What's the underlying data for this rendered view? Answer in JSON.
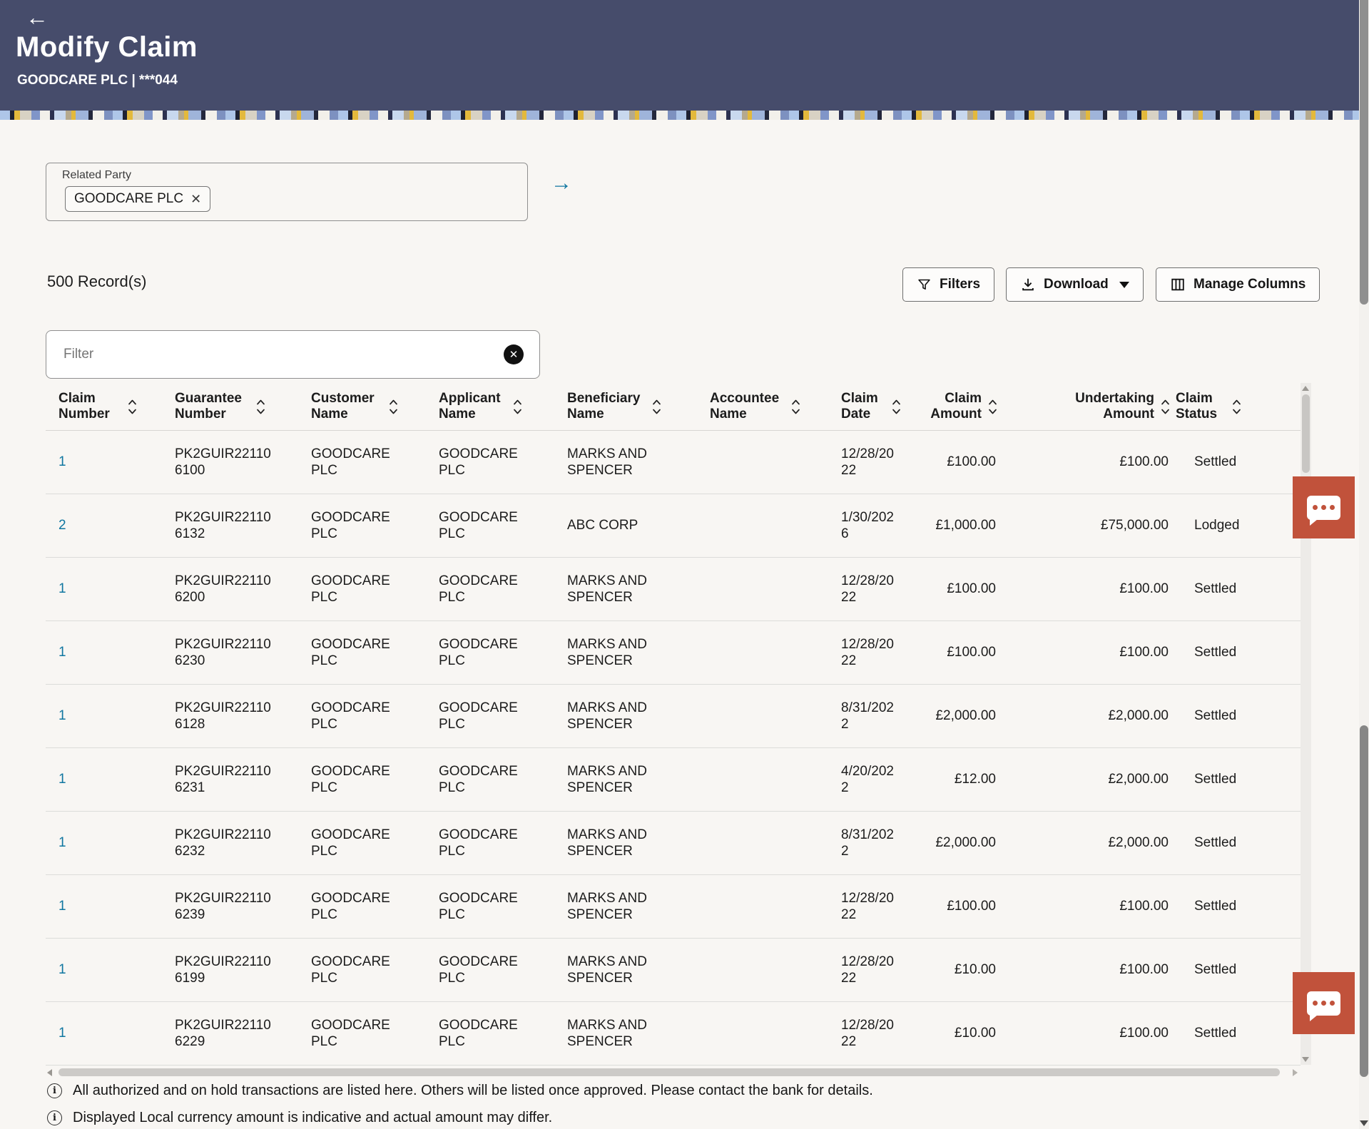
{
  "header": {
    "title": "Modify Claim",
    "subtitle": "GOODCARE PLC | ***044"
  },
  "related_party": {
    "label": "Related Party",
    "chip": "GOODCARE PLC"
  },
  "toolbar": {
    "records": "500 Record(s)",
    "filters": "Filters",
    "download": "Download",
    "manage_columns": "Manage Columns"
  },
  "filter": {
    "placeholder": "Filter"
  },
  "table": {
    "columns": [
      {
        "key": "claim_number",
        "label": "Claim Number",
        "align": "left"
      },
      {
        "key": "guarantee_number",
        "label": "Guarantee Number",
        "align": "left"
      },
      {
        "key": "customer_name",
        "label": "Customer Name",
        "align": "left"
      },
      {
        "key": "applicant_name",
        "label": "Applicant Name",
        "align": "left"
      },
      {
        "key": "beneficiary_name",
        "label": "Beneficiary Name",
        "align": "left"
      },
      {
        "key": "accountee_name",
        "label": "Accountee Name",
        "align": "left"
      },
      {
        "key": "claim_date",
        "label": "Claim Date",
        "align": "left"
      },
      {
        "key": "claim_amount",
        "label": "Claim Amount",
        "align": "right"
      },
      {
        "key": "undertaking_amount",
        "label": "Undertaking Amount",
        "align": "right"
      },
      {
        "key": "claim_status",
        "label": "Claim Status",
        "align": "left"
      }
    ],
    "rows": [
      {
        "claim_number": "1",
        "guarantee_number": "PK2GUIR221106100",
        "customer_name": "GOODCARE PLC",
        "applicant_name": "GOODCARE PLC",
        "beneficiary_name": "MARKS AND SPENCER",
        "accountee_name": "",
        "claim_date": "12/28/2022",
        "claim_amount": "£100.00",
        "undertaking_amount": "£100.00",
        "claim_status": "Settled"
      },
      {
        "claim_number": "2",
        "guarantee_number": "PK2GUIR221106132",
        "customer_name": "GOODCARE PLC",
        "applicant_name": "GOODCARE PLC",
        "beneficiary_name": "ABC CORP",
        "accountee_name": "",
        "claim_date": "1/30/2026",
        "claim_amount": "£1,000.00",
        "undertaking_amount": "£75,000.00",
        "claim_status": "Lodged"
      },
      {
        "claim_number": "1",
        "guarantee_number": "PK2GUIR221106200",
        "customer_name": "GOODCARE PLC",
        "applicant_name": "GOODCARE PLC",
        "beneficiary_name": "MARKS AND SPENCER",
        "accountee_name": "",
        "claim_date": "12/28/2022",
        "claim_amount": "£100.00",
        "undertaking_amount": "£100.00",
        "claim_status": "Settled"
      },
      {
        "claim_number": "1",
        "guarantee_number": "PK2GUIR221106230",
        "customer_name": "GOODCARE PLC",
        "applicant_name": "GOODCARE PLC",
        "beneficiary_name": "MARKS AND SPENCER",
        "accountee_name": "",
        "claim_date": "12/28/2022",
        "claim_amount": "£100.00",
        "undertaking_amount": "£100.00",
        "claim_status": "Settled"
      },
      {
        "claim_number": "1",
        "guarantee_number": "PK2GUIR221106128",
        "customer_name": "GOODCARE PLC",
        "applicant_name": "GOODCARE PLC",
        "beneficiary_name": "MARKS AND SPENCER",
        "accountee_name": "",
        "claim_date": "8/31/2022",
        "claim_amount": "£2,000.00",
        "undertaking_amount": "£2,000.00",
        "claim_status": "Settled"
      },
      {
        "claim_number": "1",
        "guarantee_number": "PK2GUIR221106231",
        "customer_name": "GOODCARE PLC",
        "applicant_name": "GOODCARE PLC",
        "beneficiary_name": "MARKS AND SPENCER",
        "accountee_name": "",
        "claim_date": "4/20/2022",
        "claim_amount": "£12.00",
        "undertaking_amount": "£2,000.00",
        "claim_status": "Settled"
      },
      {
        "claim_number": "1",
        "guarantee_number": "PK2GUIR221106232",
        "customer_name": "GOODCARE PLC",
        "applicant_name": "GOODCARE PLC",
        "beneficiary_name": "MARKS AND SPENCER",
        "accountee_name": "",
        "claim_date": "8/31/2022",
        "claim_amount": "£2,000.00",
        "undertaking_amount": "£2,000.00",
        "claim_status": "Settled"
      },
      {
        "claim_number": "1",
        "guarantee_number": "PK2GUIR221106239",
        "customer_name": "GOODCARE PLC",
        "applicant_name": "GOODCARE PLC",
        "beneficiary_name": "MARKS AND SPENCER",
        "accountee_name": "",
        "claim_date": "12/28/2022",
        "claim_amount": "£100.00",
        "undertaking_amount": "£100.00",
        "claim_status": "Settled"
      },
      {
        "claim_number": "1",
        "guarantee_number": "PK2GUIR221106199",
        "customer_name": "GOODCARE PLC",
        "applicant_name": "GOODCARE PLC",
        "beneficiary_name": "MARKS AND SPENCER",
        "accountee_name": "",
        "claim_date": "12/28/2022",
        "claim_amount": "£10.00",
        "undertaking_amount": "£100.00",
        "claim_status": "Settled"
      },
      {
        "claim_number": "1",
        "guarantee_number": "PK2GUIR221106229",
        "customer_name": "GOODCARE PLC",
        "applicant_name": "GOODCARE PLC",
        "beneficiary_name": "MARKS AND SPENCER",
        "accountee_name": "",
        "claim_date": "12/28/2022",
        "claim_amount": "£10.00",
        "undertaking_amount": "£100.00",
        "claim_status": "Settled"
      }
    ]
  },
  "notes": [
    "All authorized and on hold transactions are listed here. Others will be listed once approved. Please contact the bank for details.",
    "Displayed Local currency amount is indicative and actual amount may differ."
  ],
  "icons": {
    "back": "arrow-left",
    "submit": "arrow-right",
    "chip_remove": "x",
    "filters": "funnel",
    "download": "download-tray",
    "download_caret": "caret-down",
    "manage_columns": "columns",
    "filter_clear": "x-circle",
    "sort": "sort-carets",
    "info": "info-circle",
    "chat": "speech-bubble-ellipsis"
  },
  "glyphs": {
    "back": "←",
    "submit": "→",
    "chip_remove": "✕",
    "clear": "✕",
    "info": "i"
  },
  "colors": {
    "header_bg": "#464c6b",
    "link": "#0f76a0",
    "chat_button": "#c1523b"
  }
}
